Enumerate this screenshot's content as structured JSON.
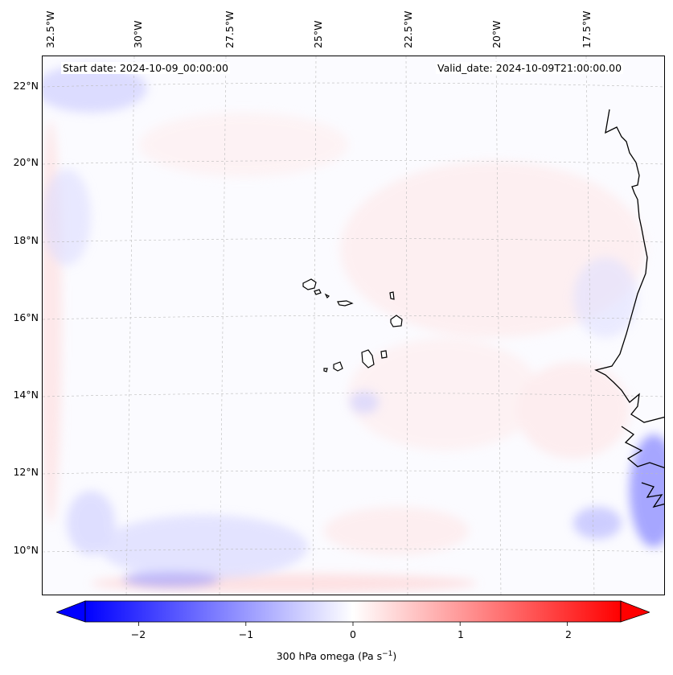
{
  "map": {
    "start_date": "Start date: 2024-10-09_00:00:00",
    "valid_date": "Valid_date: 2024-10-09T21:00:00.00",
    "lon_labels": [
      "32.5°W",
      "30°W",
      "27.5°W",
      "25°W",
      "22.5°W",
      "20°W",
      "17.5°W"
    ],
    "lat_labels": [
      "22°N",
      "20°N",
      "18°N",
      "16°N",
      "14°N",
      "12°N",
      "10°N"
    ],
    "colors": {
      "negative": "#0000ff",
      "positive": "#ff0000",
      "neutral": "#ffffff",
      "coast": "#000000",
      "grid": "#bbbbbb"
    }
  },
  "colorbar": {
    "label": "300 hPa omega (Pa s",
    "label_sup": "−1",
    "label_end": ")",
    "tick_labels": [
      "−2",
      "−1",
      "0",
      "1",
      "2"
    ],
    "tick_values": [
      -2,
      -1,
      0,
      1,
      2
    ],
    "vmin": -2.5,
    "vmax": 2.5
  }
}
